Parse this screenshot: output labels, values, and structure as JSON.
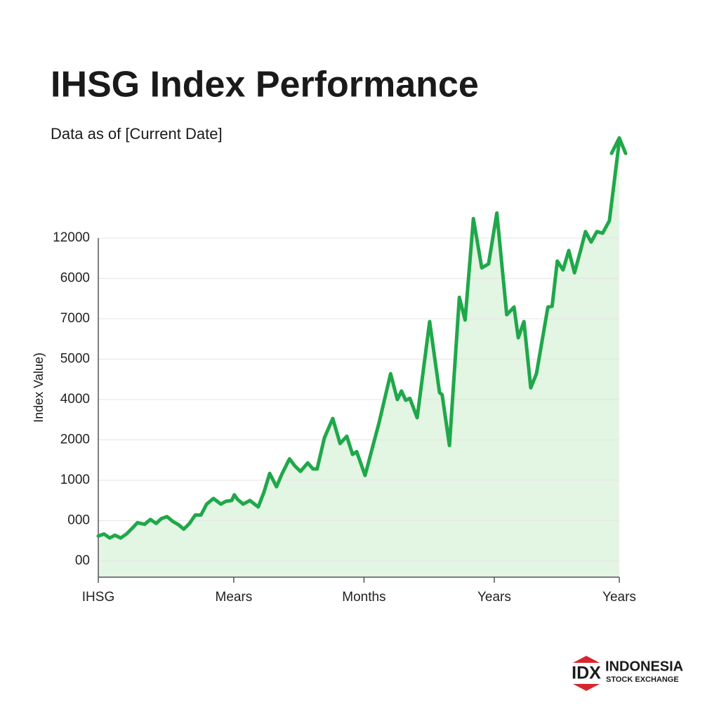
{
  "chart_data": {
    "type": "line",
    "title": "IHSG Index Performance",
    "subtitle": "Data as of [Current Date]",
    "ylabel": "Index Value)",
    "grid": true,
    "xlim": [
      0,
      100
    ],
    "xticks": [
      {
        "value": 0,
        "label": "IHSG"
      },
      {
        "value": 26,
        "label": "Mears"
      },
      {
        "value": 51,
        "label": "Months"
      },
      {
        "value": 76,
        "label": "Years"
      },
      {
        "value": 100,
        "label": "Years"
      }
    ],
    "ylim": [
      -0.4,
      10.6
    ],
    "yticks": [
      {
        "value": 0,
        "label": "00"
      },
      {
        "value": 1,
        "label": "000"
      },
      {
        "value": 2,
        "label": "1000"
      },
      {
        "value": 3,
        "label": "2000"
      },
      {
        "value": 4,
        "label": "4000"
      },
      {
        "value": 5,
        "label": "5000"
      },
      {
        "value": 6,
        "label": "7000"
      },
      {
        "value": 7,
        "label": "6000"
      },
      {
        "value": 8,
        "label": "12000"
      }
    ],
    "x": [
      0,
      1.1,
      2.2,
      3.2,
      4.3,
      5.4,
      6.5,
      7.5,
      8.9,
      10.0,
      11.1,
      12.1,
      13.2,
      14.3,
      15.4,
      16.4,
      17.5,
      18.6,
      19.7,
      20.8,
      22.1,
      23.5,
      24.5,
      25.6,
      26.1,
      26.7,
      27.8,
      29.1,
      30.7,
      31.8,
      32.9,
      34.2,
      35.3,
      36.7,
      37.7,
      38.8,
      40.2,
      41.2,
      42.0,
      43.4,
      45.0,
      46.4,
      47.7,
      48.8,
      49.6,
      51.2,
      53.9,
      56.1,
      57.4,
      58.2,
      59.0,
      59.8,
      61.2,
      63.6,
      65.5,
      66.0,
      67.4,
      69.3,
      70.4,
      72.0,
      73.6,
      74.9,
      76.5,
      78.4,
      79.8,
      80.6,
      81.7,
      83.0,
      84.1,
      86.3,
      87.1,
      88.1,
      89.2,
      90.3,
      91.4,
      92.5,
      93.5,
      94.6,
      95.7,
      96.8,
      98.1,
      100
    ],
    "series": [
      {
        "name": "IHSG",
        "color": "#1fa84a",
        "fill": "#e3f5e3",
        "values": [
          0.62,
          0.67,
          0.57,
          0.64,
          0.57,
          0.67,
          0.81,
          0.95,
          0.91,
          1.03,
          0.93,
          1.05,
          1.1,
          0.98,
          0.9,
          0.79,
          0.93,
          1.14,
          1.14,
          1.41,
          1.55,
          1.41,
          1.48,
          1.5,
          1.64,
          1.53,
          1.41,
          1.5,
          1.34,
          1.71,
          2.17,
          1.84,
          2.17,
          2.53,
          2.36,
          2.22,
          2.43,
          2.28,
          2.28,
          3.05,
          3.53,
          2.91,
          3.09,
          2.64,
          2.71,
          2.12,
          3.43,
          4.64,
          4.0,
          4.21,
          3.98,
          4.03,
          3.55,
          5.93,
          4.17,
          4.12,
          2.86,
          6.53,
          5.97,
          8.48,
          7.26,
          7.36,
          8.62,
          6.1,
          6.29,
          5.53,
          5.93,
          4.29,
          4.64,
          6.29,
          6.31,
          7.43,
          7.21,
          7.69,
          7.14,
          7.66,
          8.16,
          7.9,
          8.16,
          8.12,
          8.43,
          10.41
        ]
      }
    ]
  },
  "logo": {
    "mark": "IDX",
    "line1": "INDONESIA",
    "line2": "STOCK EXCHANGE"
  }
}
